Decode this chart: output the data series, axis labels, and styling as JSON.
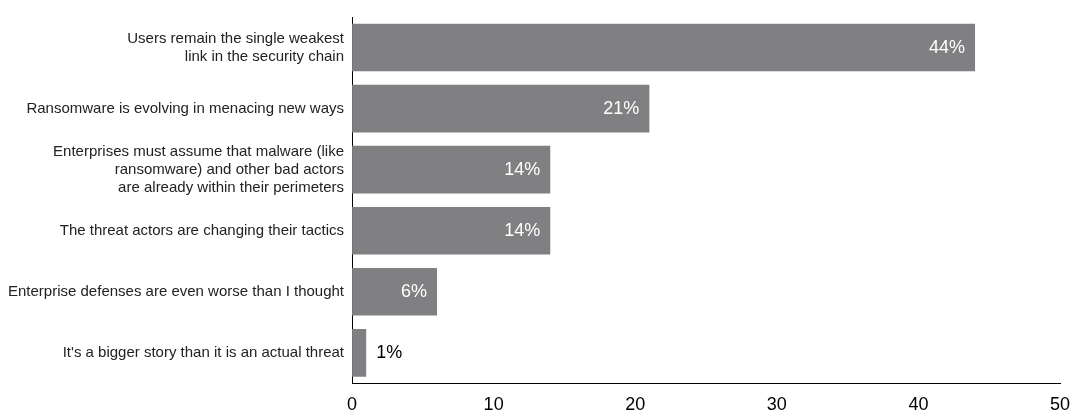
{
  "chart_data": {
    "type": "bar",
    "orientation": "horizontal",
    "categories": [
      "Users remain the single weakest\nlink in the security chain",
      "Ransomware is evolving in menacing new ways",
      "Enterprises must assume that malware (like\nransomware) and other bad actors\nare already within their perimeters",
      "The threat actors are changing their tactics",
      "Enterprise defenses are even worse than I thought",
      "It's a bigger story than it is an actual threat"
    ],
    "values": [
      44,
      21,
      14,
      14,
      6,
      1
    ],
    "value_labels": [
      "44%",
      "21%",
      "14%",
      "14%",
      "6%",
      "1%"
    ],
    "color": "#808083",
    "xlim": [
      0,
      50
    ],
    "xticks": [
      0,
      10,
      20,
      30,
      40,
      50
    ],
    "grid": false,
    "legend": false
  }
}
